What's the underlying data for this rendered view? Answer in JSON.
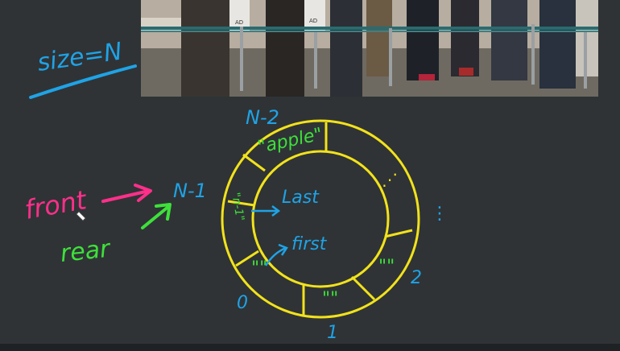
{
  "colors": {
    "background": "#2f3336",
    "blue": "#1fa3e6",
    "green": "#3ee03a",
    "pink": "#ff2f8a",
    "yellow": "#f2e21b",
    "bottom_bar": "#1f2224"
  },
  "photo": {
    "sign_left": "AD",
    "sign_right": "AD"
  },
  "annotations": {
    "size_label": "size=N",
    "front_label": "front",
    "rear_label": "rear",
    "index_n_minus_1": "N-1",
    "index_n_minus_2": "N-2",
    "index_0": "0",
    "index_1": "1",
    "index_2": "2",
    "cell_apple": "\"apple\"",
    "cell_n_minus_1": "\"n-1\"",
    "cell_0_marks": "\"\"",
    "cell_1_marks": "\"\"",
    "cell_2_marks": "\"\"",
    "inner_last": "Last",
    "inner_first": "first",
    "outer_dots": "⋮",
    "inner_dots": "⋰"
  }
}
